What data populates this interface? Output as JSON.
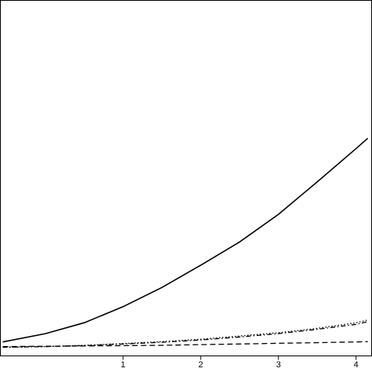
{
  "chart_data": {
    "type": "line",
    "title": "",
    "xlabel": "",
    "ylabel": "",
    "xlim": [
      -0.58,
      4.2
    ],
    "ylim": [
      -0.2,
      10.5
    ],
    "x_ticks": [
      {
        "value": 1,
        "label": "1"
      },
      {
        "value": 2,
        "label": "2"
      },
      {
        "value": 3,
        "label": "3"
      },
      {
        "value": 4,
        "label": "4"
      }
    ],
    "grid": false,
    "legend": "none",
    "series": [
      {
        "style": "solid",
        "points": [
          [
            -0.55,
            0.22
          ],
          [
            0.0,
            0.47
          ],
          [
            0.5,
            0.8
          ],
          [
            1.0,
            1.28
          ],
          [
            1.5,
            1.86
          ],
          [
            2.0,
            2.53
          ],
          [
            2.5,
            3.23
          ],
          [
            3.0,
            4.06
          ],
          [
            3.5,
            5.04
          ],
          [
            4.0,
            6.04
          ],
          [
            4.15,
            6.35
          ]
        ]
      },
      {
        "style": "dotted",
        "points": [
          [
            -0.55,
            0.06
          ],
          [
            0.0,
            0.08
          ],
          [
            0.5,
            0.12
          ],
          [
            1.0,
            0.17
          ],
          [
            1.5,
            0.23
          ],
          [
            2.0,
            0.3
          ],
          [
            2.5,
            0.4
          ],
          [
            3.0,
            0.5
          ],
          [
            3.5,
            0.63
          ],
          [
            4.0,
            0.8
          ],
          [
            4.15,
            0.88
          ]
        ]
      },
      {
        "style": "dashdot",
        "points": [
          [
            -0.55,
            0.06
          ],
          [
            0.0,
            0.08
          ],
          [
            0.5,
            0.11
          ],
          [
            1.0,
            0.16
          ],
          [
            1.5,
            0.21
          ],
          [
            2.0,
            0.28
          ],
          [
            2.5,
            0.37
          ],
          [
            3.0,
            0.47
          ],
          [
            3.5,
            0.6
          ],
          [
            4.0,
            0.75
          ],
          [
            4.15,
            0.83
          ]
        ]
      },
      {
        "style": "dashed",
        "points": [
          [
            -0.55,
            0.08
          ],
          [
            0.0,
            0.09
          ],
          [
            0.5,
            0.1
          ],
          [
            1.0,
            0.11
          ],
          [
            1.5,
            0.12
          ],
          [
            2.0,
            0.14
          ],
          [
            2.5,
            0.16
          ],
          [
            3.0,
            0.18
          ],
          [
            3.5,
            0.2
          ],
          [
            4.0,
            0.22
          ],
          [
            4.15,
            0.23
          ]
        ]
      }
    ]
  }
}
